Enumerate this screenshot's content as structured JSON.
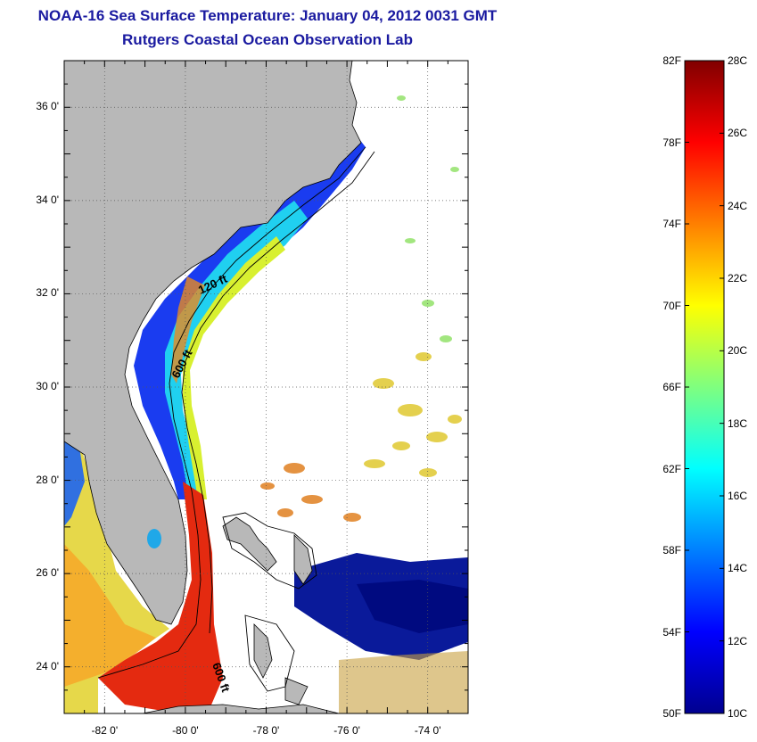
{
  "title": {
    "line1": "NOAA-16 Sea Surface Temperature:  January 04, 2012 0031 GMT",
    "line2": "Rutgers Coastal Ocean Observation Lab"
  },
  "map": {
    "lon_range": [
      -83,
      -73
    ],
    "lat_range": [
      23,
      37
    ],
    "y_ticks": [
      {
        "lat": 36,
        "label": "36 0'"
      },
      {
        "lat": 34,
        "label": "34 0'"
      },
      {
        "lat": 32,
        "label": "32 0'"
      },
      {
        "lat": 30,
        "label": "30 0'"
      },
      {
        "lat": 28,
        "label": "28 0'"
      },
      {
        "lat": 26,
        "label": "26 0'"
      },
      {
        "lat": 24,
        "label": "24 0'"
      }
    ],
    "x_ticks": [
      {
        "lon": -82,
        "label": "-82 0'"
      },
      {
        "lon": -80,
        "label": "-80 0'"
      },
      {
        "lon": -78,
        "label": "-78 0'"
      },
      {
        "lon": -76,
        "label": "-76 0'"
      },
      {
        "lon": -74,
        "label": "-74 0'"
      }
    ],
    "contour_labels": [
      {
        "text": "120 ft"
      },
      {
        "text": "600 ft"
      },
      {
        "text": "600 ft"
      }
    ],
    "colors": {
      "land": "#b8b8b8",
      "water_missing": "#ffffff",
      "gridline": "#555555",
      "coastline": "#000000"
    }
  },
  "colorbar": {
    "fahrenheit_labels": [
      "82F",
      "78F",
      "74F",
      "70F",
      "66F",
      "62F",
      "58F",
      "54F",
      "50F"
    ],
    "celsius_labels": [
      "28C",
      "26C",
      "24C",
      "22C",
      "20C",
      "18C",
      "16C",
      "14C",
      "12C",
      "10C"
    ],
    "c_range": [
      10,
      28
    ],
    "colormap": "jet"
  }
}
